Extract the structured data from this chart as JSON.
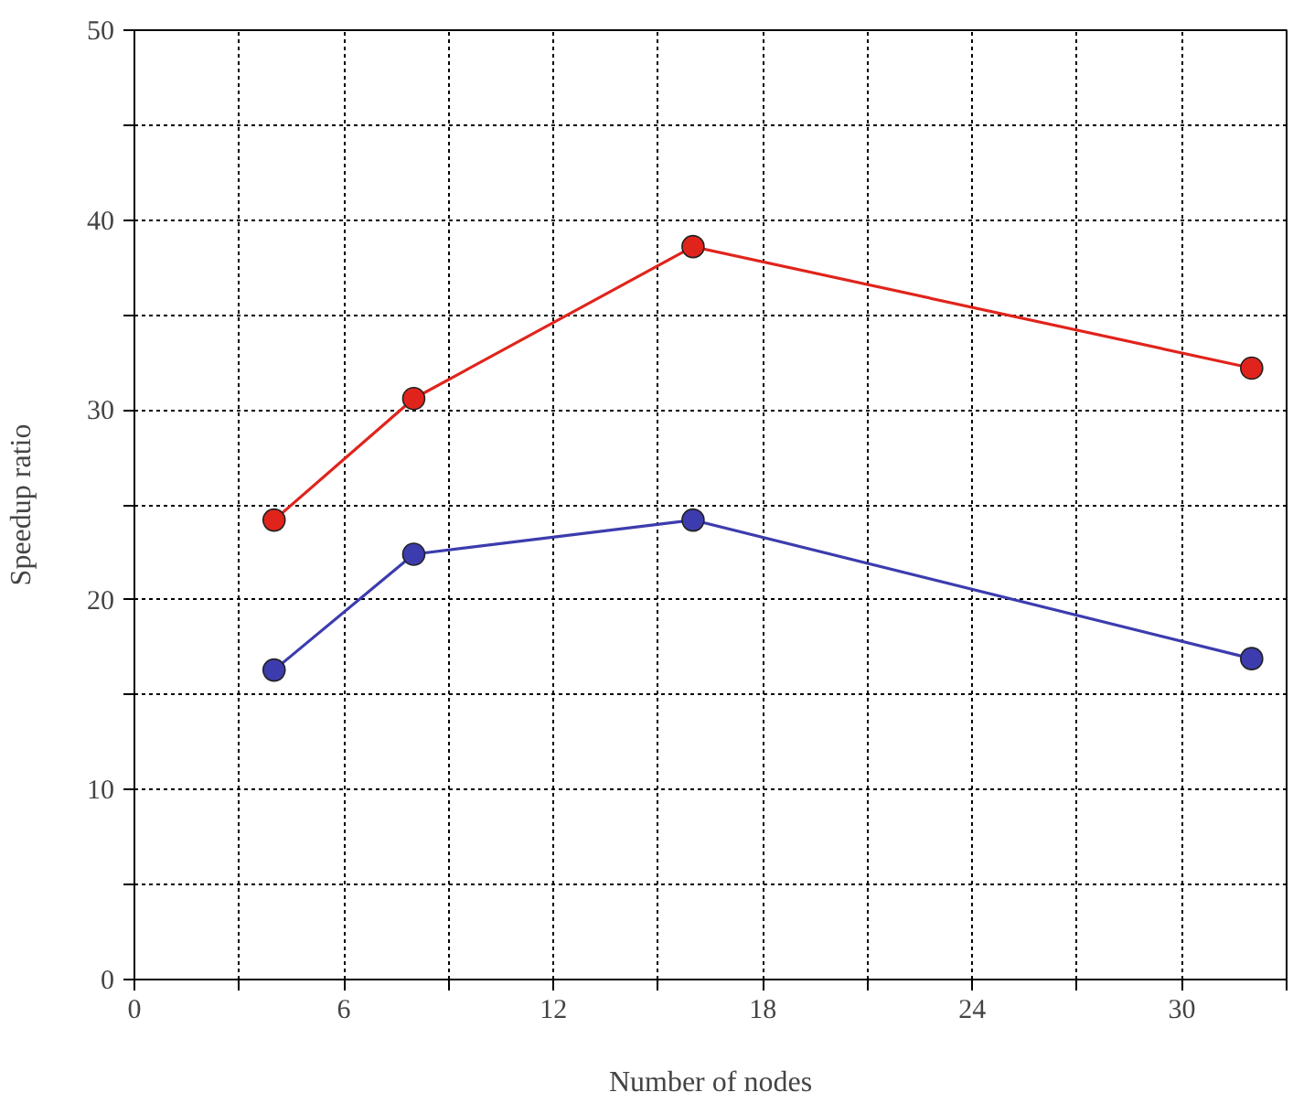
{
  "chart_data": {
    "type": "line",
    "xlabel": "Number of nodes",
    "ylabel": "Speedup ratio",
    "x": [
      4,
      8,
      16,
      32
    ],
    "series": [
      {
        "color": "#e0241c",
        "values": [
          24.2,
          30.6,
          38.6,
          32.2
        ]
      },
      {
        "color": "#3c3cae",
        "values": [
          16.3,
          22.4,
          24.2,
          16.9
        ]
      }
    ],
    "xlim": [
      0,
      33
    ],
    "ylim": [
      0,
      50
    ],
    "xticks": [
      0,
      {
        "value": 3,
        "label": null
      },
      6,
      {
        "value": 9,
        "label": null
      },
      12,
      {
        "value": 15,
        "label": null
      },
      18,
      {
        "value": 21,
        "label": null
      },
      24,
      {
        "value": 27,
        "label": null
      },
      30,
      {
        "value": 33,
        "label": null
      }
    ],
    "yticks": [
      0,
      {
        "value": 5,
        "label": null
      },
      10,
      {
        "value": 15,
        "label": null
      },
      20,
      {
        "value": 25,
        "label": null
      },
      30,
      {
        "value": 35,
        "label": null
      },
      40,
      {
        "value": 45,
        "label": null
      },
      50
    ],
    "grid": true,
    "marker": "circle",
    "line_style": "solid"
  }
}
